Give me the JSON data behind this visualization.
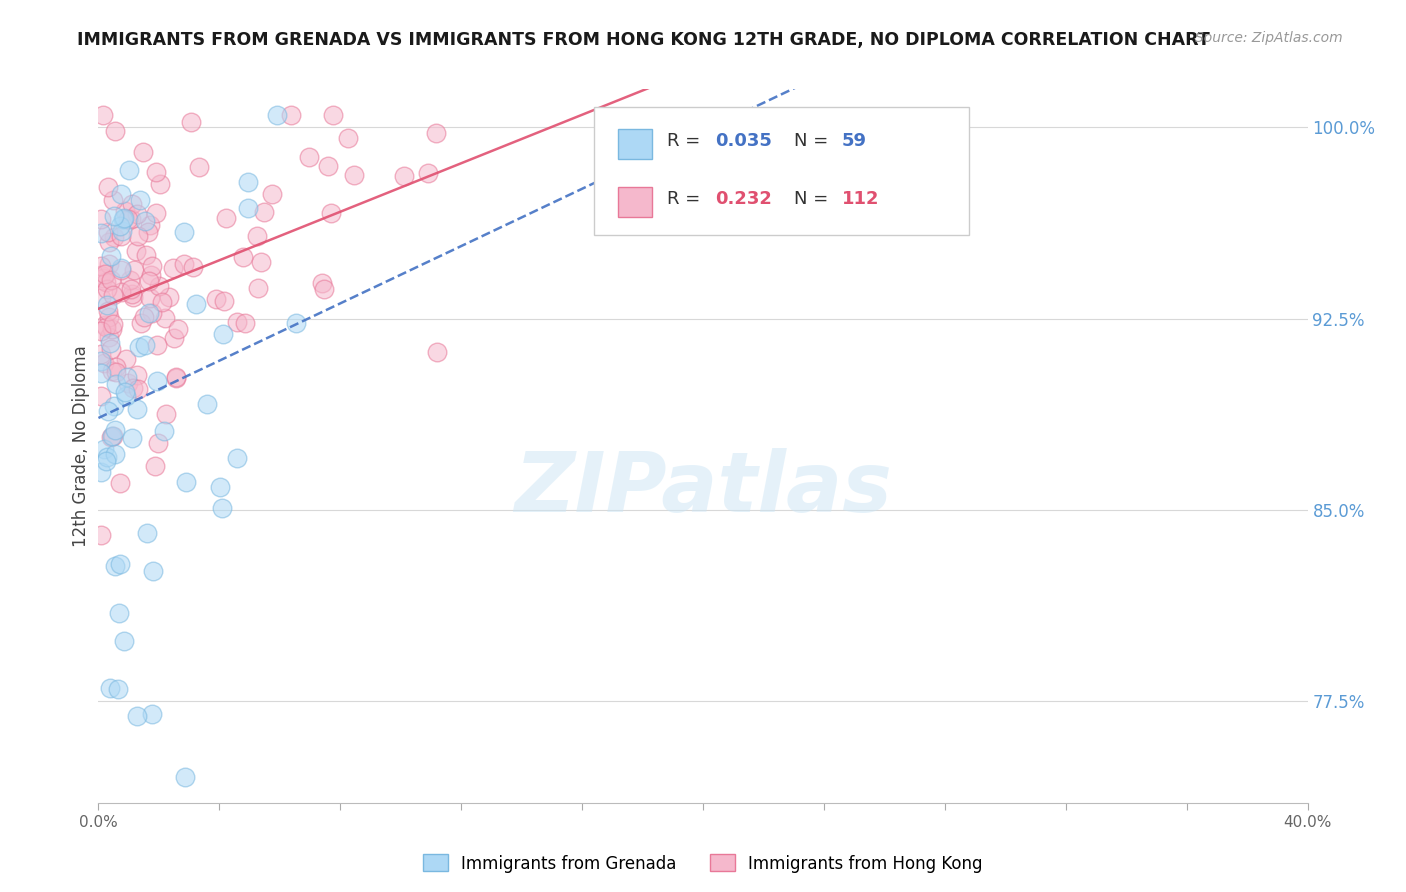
{
  "title": "IMMIGRANTS FROM GRENADA VS IMMIGRANTS FROM HONG KONG 12TH GRADE, NO DIPLOMA CORRELATION CHART",
  "source": "Source: ZipAtlas.com",
  "ylabel": "12th Grade, No Diploma",
  "xlim": [
    0.0,
    0.4
  ],
  "ylim": [
    0.735,
    1.015
  ],
  "xticks": [
    0.0,
    0.04,
    0.08,
    0.12,
    0.16,
    0.2,
    0.24,
    0.28,
    0.32,
    0.36,
    0.4
  ],
  "xtick_labels": [
    "0.0%",
    "",
    "",
    "",
    "",
    "",
    "",
    "",
    "",
    "",
    "40.0%"
  ],
  "ytick_labels_right": [
    "77.5%",
    "85.0%",
    "92.5%",
    "100.0%"
  ],
  "ytick_vals_right": [
    0.775,
    0.85,
    0.925,
    1.0
  ],
  "scatter_grenada": {
    "color": "#add8f5",
    "edge_color": "#7ab8e0",
    "alpha": 0.55,
    "size": 180
  },
  "scatter_hk": {
    "color": "#f5b8cc",
    "edge_color": "#e87898",
    "alpha": 0.55,
    "size": 180
  },
  "trend_grenada": {
    "color": "#4472c4",
    "style": "--",
    "alpha": 0.9,
    "lw": 1.8
  },
  "trend_hk": {
    "color": "#e05070",
    "style": "-",
    "alpha": 0.9,
    "lw": 1.8
  },
  "legend_grenada_color": "#add8f5",
  "legend_grenada_edge": "#7ab8e0",
  "legend_hk_color": "#f5b8cc",
  "legend_hk_edge": "#e87898",
  "R_grenada": 0.035,
  "N_grenada": 59,
  "R_hk": 0.232,
  "N_hk": 112,
  "watermark": "ZIPatlas",
  "background_color": "#ffffff",
  "grid_color": "#d8d8d8"
}
